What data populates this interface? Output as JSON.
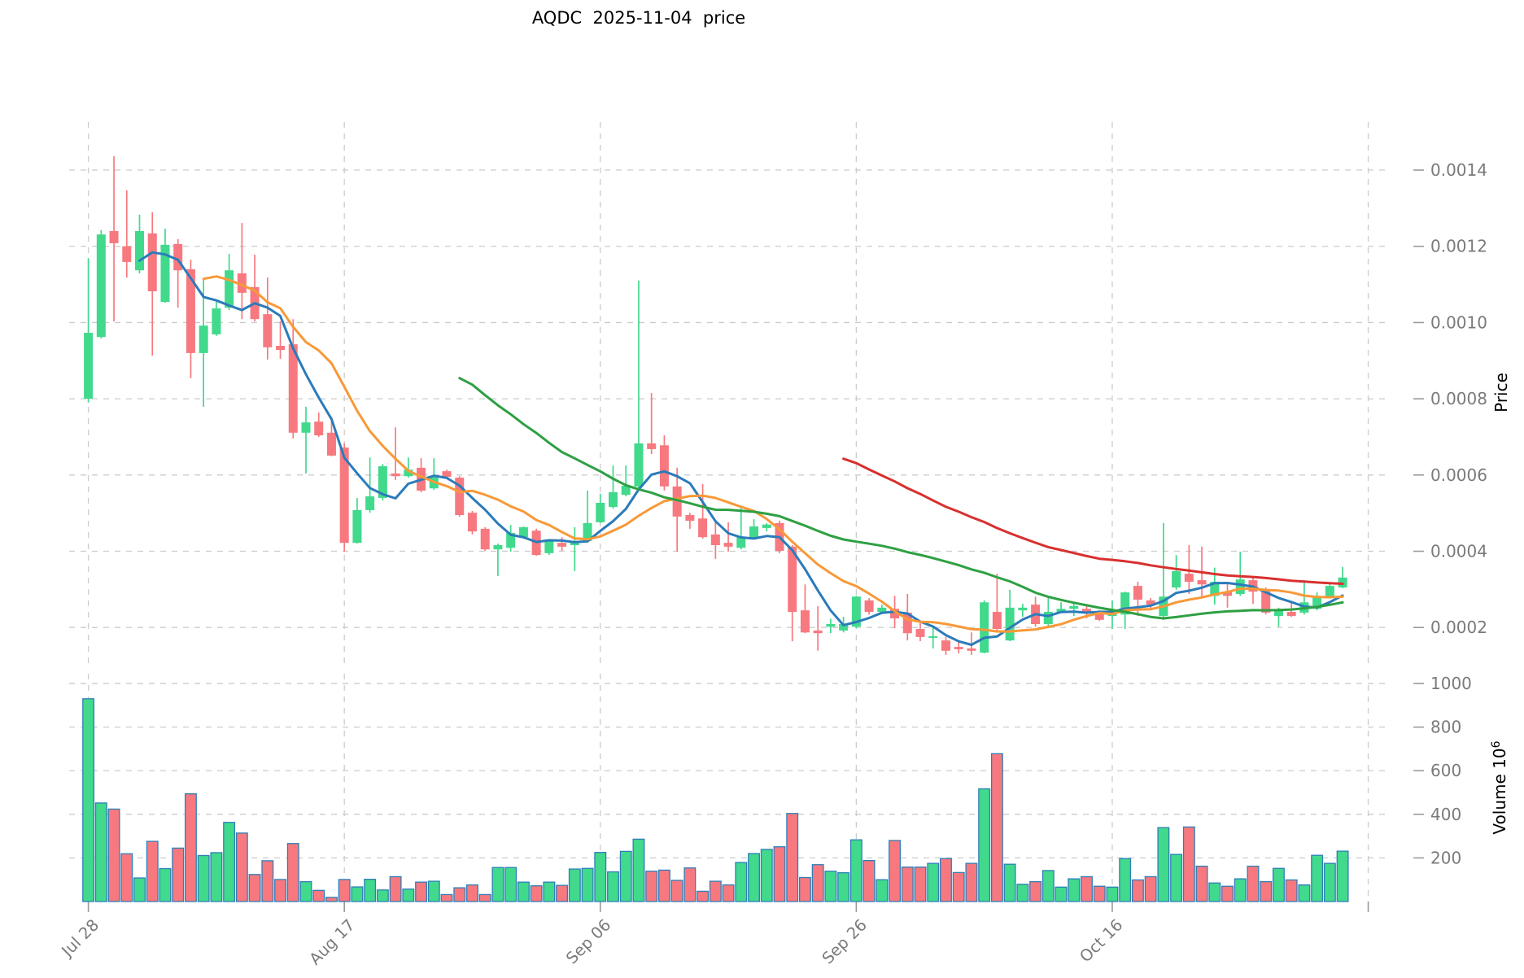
{
  "title": "AQDC  2025-11-04  price",
  "axes": {
    "price_axis_label": "Price",
    "volume_axis_label": "Volume",
    "volume_scale_base": "10",
    "volume_scale_exponent": "6",
    "price_tick_labels": [
      "0.0002",
      "0.0004",
      "0.0006",
      "0.0008",
      "0.0010",
      "0.0012",
      "0.0014"
    ],
    "volume_tick_labels": [
      "200",
      "400",
      "600",
      "800",
      "1000"
    ],
    "x_tick_labels": [
      {
        "index": 0,
        "label": "Jul 28"
      },
      {
        "index": 20,
        "label": "Aug 17"
      },
      {
        "index": 40,
        "label": "Sep 06"
      },
      {
        "index": 60,
        "label": "Sep 26"
      },
      {
        "index": 80,
        "label": "Oct 16"
      },
      {
        "index": 100,
        "label": ""
      }
    ]
  },
  "style": {
    "up_color": "#41d98c",
    "down_color": "#f7797f",
    "volume_edge_color": "#2e7eb8",
    "grid_color": "#cccccc",
    "tick_text_color": "#7a7a7a",
    "tick_mark_color": "#9a9a9a",
    "axis_label_color": "#000000",
    "background": "#ffffff"
  },
  "chart_data": {
    "type": "candlestick+volume",
    "title": "AQDC  2025-11-04  price",
    "price_unit_multiplier": 1e-05,
    "volume_unit": "1e6",
    "x_range": [
      -1.5,
      101.3
    ],
    "price_range_multiplied": [
      10.65,
      152.6
    ],
    "volume_range": [
      0,
      1045
    ],
    "grid": true,
    "ma_lines": [
      {
        "name": "ma-short",
        "period": 5,
        "color": "#2b7bba"
      },
      {
        "name": "ma-mid",
        "period": 10,
        "color": "#f89938"
      },
      {
        "name": "ma-long",
        "period": 30,
        "color": "#2ea043"
      },
      {
        "name": "ma-longest",
        "period": 60,
        "color": "#d8302f"
      }
    ],
    "candles_format": [
      "open",
      "high",
      "low",
      "close",
      "volume"
    ],
    "candles": [
      [
        80.0,
        116.9,
        79.0,
        97.3,
        930
      ],
      [
        96.2,
        124.2,
        95.8,
        123.1,
        452
      ],
      [
        124.0,
        143.6,
        100.3,
        120.8,
        424
      ],
      [
        120.0,
        134.7,
        111.8,
        115.9,
        219
      ],
      [
        113.7,
        128.3,
        112.9,
        124.0,
        108
      ],
      [
        123.4,
        128.9,
        91.3,
        108.2,
        276
      ],
      [
        105.4,
        124.6,
        105.2,
        120.4,
        151
      ],
      [
        120.6,
        121.9,
        103.9,
        113.7,
        245
      ],
      [
        114.0,
        116.5,
        85.4,
        92.0,
        494
      ],
      [
        92.0,
        111.4,
        77.9,
        99.2,
        211
      ],
      [
        96.9,
        105.5,
        96.5,
        103.7,
        224
      ],
      [
        103.9,
        118.0,
        103.3,
        113.7,
        363
      ],
      [
        112.9,
        126.1,
        100.9,
        107.8,
        314
      ],
      [
        109.3,
        117.8,
        100.3,
        100.9,
        124
      ],
      [
        102.2,
        111.8,
        90.3,
        93.5,
        187
      ],
      [
        93.9,
        100.3,
        90.5,
        92.8,
        101
      ],
      [
        94.3,
        100.9,
        69.6,
        71.1,
        266
      ],
      [
        71.1,
        77.9,
        60.4,
        73.8,
        91
      ],
      [
        74.0,
        76.4,
        70.0,
        70.4,
        51
      ],
      [
        71.1,
        75.3,
        64.9,
        65.1,
        19
      ],
      [
        67.2,
        68.3,
        39.9,
        42.2,
        101
      ],
      [
        42.2,
        54.0,
        42.0,
        50.8,
        67
      ],
      [
        50.8,
        64.6,
        50.1,
        54.4,
        102
      ],
      [
        54.0,
        62.9,
        53.3,
        62.3,
        53
      ],
      [
        60.4,
        72.5,
        58.7,
        59.7,
        114
      ],
      [
        59.7,
        64.6,
        59.3,
        61.4,
        57
      ],
      [
        61.9,
        64.4,
        55.5,
        55.9,
        89
      ],
      [
        56.5,
        64.4,
        56.1,
        59.7,
        93
      ],
      [
        61.0,
        61.4,
        59.1,
        59.5,
        32
      ],
      [
        59.3,
        59.7,
        49.1,
        49.5,
        63
      ],
      [
        50.1,
        50.6,
        44.4,
        45.2,
        76
      ],
      [
        45.9,
        46.3,
        40.1,
        40.5,
        32
      ],
      [
        40.5,
        42.0,
        33.5,
        41.6,
        156
      ],
      [
        40.9,
        46.9,
        39.9,
        44.8,
        156
      ],
      [
        43.7,
        46.5,
        43.3,
        46.3,
        89
      ],
      [
        45.4,
        45.9,
        38.8,
        39.0,
        72
      ],
      [
        39.5,
        43.1,
        39.0,
        42.7,
        89
      ],
      [
        42.2,
        43.7,
        40.1,
        41.2,
        74
      ],
      [
        41.6,
        46.3,
        34.8,
        42.7,
        149
      ],
      [
        42.7,
        55.9,
        42.2,
        47.4,
        152
      ],
      [
        47.6,
        55.1,
        47.4,
        52.7,
        225
      ],
      [
        51.6,
        62.5,
        51.2,
        55.5,
        136
      ],
      [
        54.8,
        62.5,
        54.4,
        57.2,
        230
      ],
      [
        57.0,
        111.0,
        56.5,
        68.3,
        286
      ],
      [
        68.3,
        81.5,
        65.5,
        66.8,
        139
      ],
      [
        67.8,
        70.4,
        55.9,
        57.0,
        144
      ],
      [
        57.0,
        61.9,
        39.9,
        49.1,
        97
      ],
      [
        49.5,
        50.1,
        45.9,
        48.0,
        154
      ],
      [
        48.6,
        57.6,
        43.3,
        43.7,
        47
      ],
      [
        44.4,
        47.6,
        38.0,
        41.6,
        93
      ],
      [
        42.2,
        47.6,
        39.9,
        41.2,
        76
      ],
      [
        40.9,
        51.8,
        40.5,
        43.7,
        179
      ],
      [
        43.5,
        48.4,
        43.1,
        46.5,
        220
      ],
      [
        46.1,
        47.4,
        45.2,
        47.0,
        239
      ],
      [
        47.4,
        48.0,
        39.5,
        40.1,
        251
      ],
      [
        41.2,
        41.6,
        16.4,
        24.1,
        404
      ],
      [
        24.5,
        31.3,
        18.5,
        18.7,
        110
      ],
      [
        19.2,
        25.6,
        13.9,
        18.5,
        169
      ],
      [
        20.2,
        22.3,
        18.5,
        20.9,
        139
      ],
      [
        19.2,
        22.8,
        18.7,
        20.9,
        132
      ],
      [
        20.2,
        28.3,
        19.8,
        28.1,
        283
      ],
      [
        27.1,
        27.7,
        23.4,
        24.1,
        188
      ],
      [
        24.1,
        26.0,
        23.9,
        25.2,
        100
      ],
      [
        24.9,
        28.3,
        19.8,
        22.4,
        280
      ],
      [
        23.9,
        28.8,
        16.6,
        18.5,
        158
      ],
      [
        19.6,
        21.3,
        16.4,
        17.5,
        158
      ],
      [
        17.3,
        20.2,
        14.5,
        17.7,
        175
      ],
      [
        16.6,
        17.5,
        12.8,
        13.9,
        197
      ],
      [
        14.9,
        16.4,
        13.2,
        14.3,
        133
      ],
      [
        14.5,
        18.7,
        12.8,
        13.9,
        175
      ],
      [
        13.4,
        27.1,
        13.2,
        26.6,
        517
      ],
      [
        24.1,
        34.1,
        19.2,
        19.6,
        678
      ],
      [
        16.6,
        29.9,
        16.4,
        25.2,
        171
      ],
      [
        24.5,
        26.2,
        22.8,
        25.2,
        79
      ],
      [
        26.0,
        28.1,
        20.2,
        20.9,
        91
      ],
      [
        20.9,
        28.1,
        20.2,
        24.1,
        142
      ],
      [
        24.1,
        26.6,
        23.9,
        24.9,
        66
      ],
      [
        24.9,
        26.2,
        23.0,
        25.6,
        104
      ],
      [
        24.9,
        25.6,
        22.4,
        23.9,
        114
      ],
      [
        24.1,
        24.5,
        21.7,
        22.0,
        70
      ],
      [
        23.0,
        27.1,
        19.6,
        24.1,
        66
      ],
      [
        23.4,
        29.4,
        19.6,
        29.2,
        197
      ],
      [
        30.9,
        32.0,
        23.0,
        27.3,
        99
      ],
      [
        27.1,
        27.7,
        24.5,
        26.0,
        114
      ],
      [
        23.0,
        47.4,
        22.0,
        28.1,
        339
      ],
      [
        30.5,
        39.0,
        29.9,
        34.8,
        216
      ],
      [
        34.1,
        41.6,
        28.8,
        32.0,
        342
      ],
      [
        32.4,
        41.2,
        28.1,
        31.3,
        162
      ],
      [
        28.3,
        35.7,
        26.0,
        32.0,
        85
      ],
      [
        29.4,
        31.5,
        25.2,
        28.3,
        70
      ],
      [
        28.8,
        39.9,
        28.3,
        32.6,
        104
      ],
      [
        32.4,
        33.1,
        26.2,
        29.4,
        162
      ],
      [
        29.9,
        30.5,
        23.4,
        23.9,
        91
      ],
      [
        23.0,
        25.2,
        20.2,
        24.5,
        152
      ],
      [
        24.1,
        26.6,
        22.8,
        23.0,
        99
      ],
      [
        23.9,
        32.4,
        23.4,
        26.6,
        76
      ],
      [
        24.9,
        29.2,
        24.5,
        28.3,
        212
      ],
      [
        28.1,
        31.5,
        27.7,
        30.9,
        175
      ],
      [
        30.5,
        35.9,
        30.3,
        33.1,
        231
      ]
    ]
  }
}
